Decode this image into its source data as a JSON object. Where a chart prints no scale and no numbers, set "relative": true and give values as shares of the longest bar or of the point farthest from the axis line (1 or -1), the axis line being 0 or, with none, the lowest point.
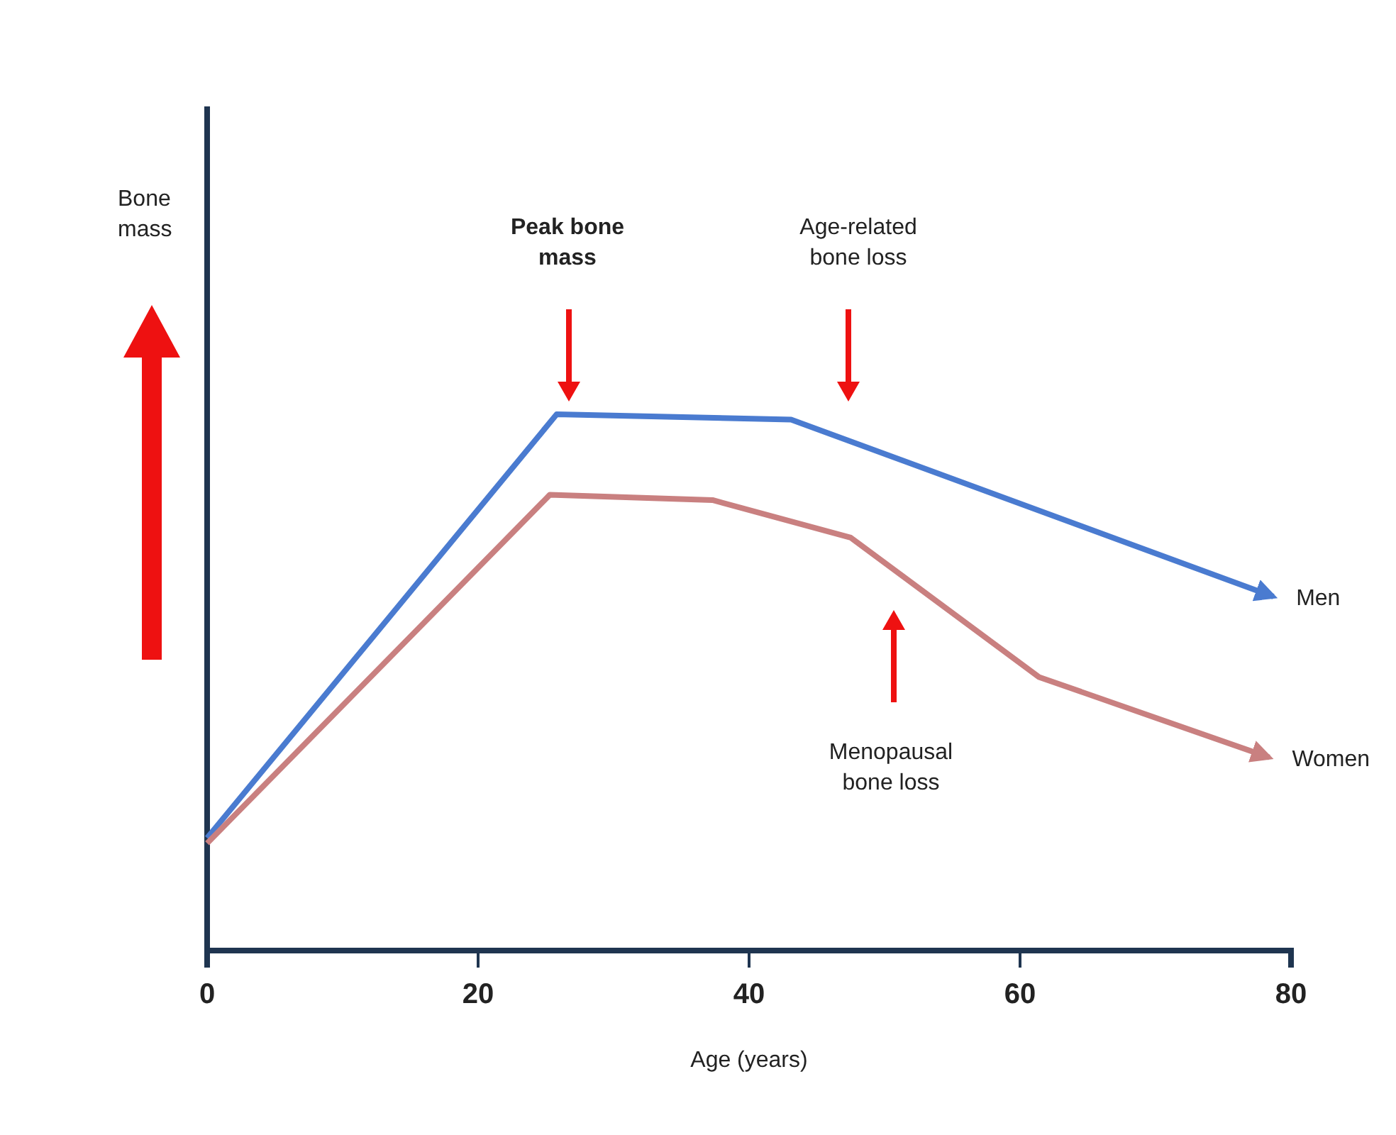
{
  "chart_data": {
    "type": "line",
    "relative": true,
    "xlabel": "Age (years)",
    "xlim": [
      0,
      80
    ],
    "xticks": [
      0,
      20,
      40,
      60,
      80
    ],
    "marker": "none",
    "line_style": "solid",
    "series": [
      {
        "name": "Men",
        "color": "#4a7bd0",
        "x": [
          0,
          25.8,
          43.1,
          78.7
        ],
        "values": [
          0.21,
          1,
          0.99,
          0.66
        ]
      },
      {
        "name": "Women",
        "color": "#c98080",
        "x": [
          0,
          25.3,
          37.3,
          47.5,
          61.4,
          78.4
        ],
        "values": [
          0.2,
          0.85,
          0.84,
          0.77,
          0.51,
          0.36
        ]
      }
    ],
    "annotations": [
      "Bone mass",
      "Peak bone mass",
      "Age-related bone loss",
      "Menopausal bone loss"
    ]
  }
}
